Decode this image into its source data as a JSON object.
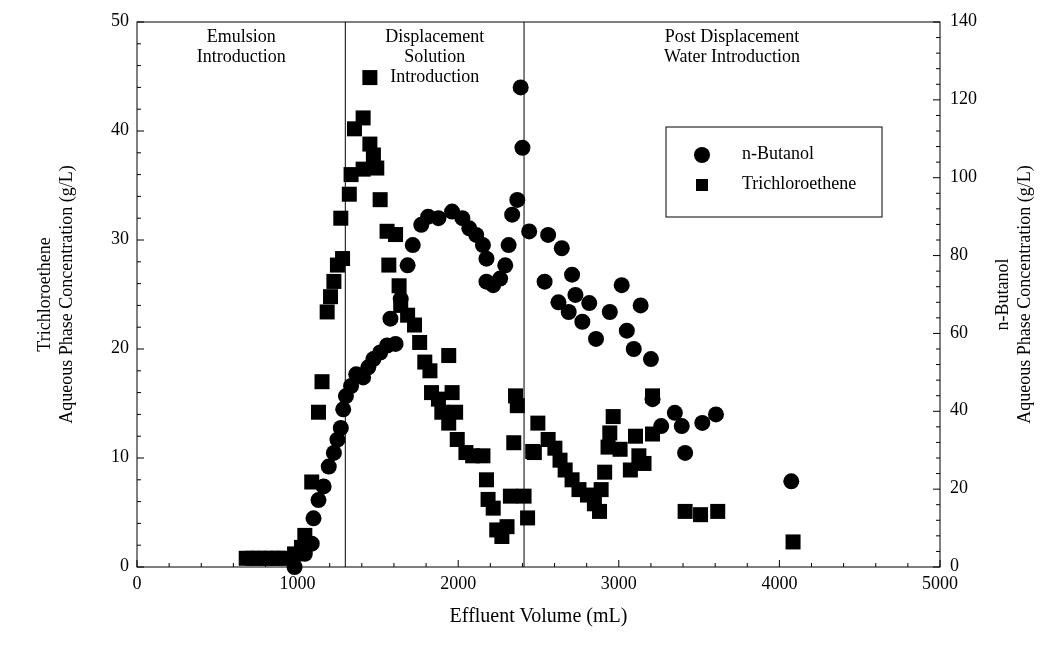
{
  "chart_data": {
    "type": "scatter",
    "xlabel": "Effluent Volume (mL)",
    "ylabel": "Trichloroethene\nAqueous Phase Concentration (g/L)",
    "y2label": "n-Butanol\nAqueous Phase Concentration (g/L)",
    "annotations": [
      "Emulsion\nIntroduction",
      "Displacement\nSolution\nIntroduction",
      "Post Displacement\nWater Introduction"
    ],
    "xlim": [
      0,
      5000
    ],
    "xticks": [
      0,
      {
        "value": 200,
        "label": null
      },
      {
        "value": 400,
        "label": null
      },
      {
        "value": 600,
        "label": null
      },
      {
        "value": 800,
        "label": null
      },
      1000,
      {
        "value": 1200,
        "label": null
      },
      {
        "value": 1400,
        "label": null
      },
      {
        "value": 1600,
        "label": null
      },
      {
        "value": 1800,
        "label": null
      },
      2000,
      {
        "value": 2200,
        "label": null
      },
      {
        "value": 2400,
        "label": null
      },
      {
        "value": 2600,
        "label": null
      },
      {
        "value": 2800,
        "label": null
      },
      3000,
      {
        "value": 3200,
        "label": null
      },
      {
        "value": 3400,
        "label": null
      },
      {
        "value": 3600,
        "label": null
      },
      {
        "value": 3800,
        "label": null
      },
      4000,
      {
        "value": 4200,
        "label": null
      },
      {
        "value": 4400,
        "label": null
      },
      {
        "value": 4600,
        "label": null
      },
      {
        "value": 4800,
        "label": null
      },
      5000
    ],
    "ylim": [
      0,
      50
    ],
    "yticks": [
      0,
      {
        "value": 2,
        "label": null
      },
      {
        "value": 4,
        "label": null
      },
      {
        "value": 6,
        "label": null
      },
      {
        "value": 8,
        "label": null
      },
      10,
      {
        "value": 12,
        "label": null
      },
      {
        "value": 14,
        "label": null
      },
      {
        "value": 16,
        "label": null
      },
      {
        "value": 18,
        "label": null
      },
      20,
      {
        "value": 22,
        "label": null
      },
      {
        "value": 24,
        "label": null
      },
      {
        "value": 26,
        "label": null
      },
      {
        "value": 28,
        "label": null
      },
      30,
      {
        "value": 32,
        "label": null
      },
      {
        "value": 34,
        "label": null
      },
      {
        "value": 36,
        "label": null
      },
      {
        "value": 38,
        "label": null
      },
      40,
      {
        "value": 42,
        "label": null
      },
      {
        "value": 44,
        "label": null
      },
      {
        "value": 46,
        "label": null
      },
      {
        "value": 48,
        "label": null
      },
      50
    ],
    "y2lim": [
      0,
      140
    ],
    "y2ticks": [
      0,
      {
        "value": 4,
        "label": null
      },
      {
        "value": 8,
        "label": null
      },
      {
        "value": 12,
        "label": null
      },
      {
        "value": 16,
        "label": null
      },
      20,
      {
        "value": 24,
        "label": null
      },
      {
        "value": 28,
        "label": null
      },
      {
        "value": 32,
        "label": null
      },
      {
        "value": 36,
        "label": null
      },
      40,
      {
        "value": 44,
        "label": null
      },
      {
        "value": 48,
        "label": null
      },
      {
        "value": 52,
        "label": null
      },
      {
        "value": 56,
        "label": null
      },
      60,
      {
        "value": 64,
        "label": null
      },
      {
        "value": 68,
        "label": null
      },
      {
        "value": 72,
        "label": null
      },
      {
        "value": 76,
        "label": null
      },
      80,
      {
        "value": 84,
        "label": null
      },
      {
        "value": 88,
        "label": null
      },
      {
        "value": 92,
        "label": null
      },
      {
        "value": 96,
        "label": null
      },
      100,
      {
        "value": 104,
        "label": null
      },
      {
        "value": 108,
        "label": null
      },
      {
        "value": 112,
        "label": null
      },
      {
        "value": 116,
        "label": null
      },
      120,
      {
        "value": 124,
        "label": null
      },
      {
        "value": 128,
        "label": null
      },
      {
        "value": 132,
        "label": null
      },
      {
        "value": 136,
        "label": null
      },
      140
    ],
    "ref_lines": [
      {
        "axis": "x",
        "value": 1297,
        "color": "#000000"
      },
      {
        "axis": "x",
        "value": 2410,
        "color": "#000000"
      }
    ],
    "grid": false,
    "legend": "top right",
    "series": [
      {
        "name": "n-Butanol",
        "color": "#000000",
        "marker": "circle",
        "axis": "y2",
        "x": [
          981,
          1045,
          1088,
          1099,
          1130,
          1162,
          1194,
          1226,
          1248,
          1269,
          1284,
          1301,
          1333,
          1365,
          1408,
          1440,
          1472,
          1514,
          1557,
          1578,
          1610,
          1642,
          1685,
          1717,
          1770,
          1813,
          1877,
          1962,
          2026,
          2069,
          2112,
          2154,
          2176,
          2176,
          2218,
          2261,
          2293,
          2314,
          2336,
          2368,
          2389,
          2400,
          2442,
          2538,
          2560,
          2645,
          2709,
          2730,
          2816,
          3018,
          3136,
          2624,
          2688,
          2773,
          2858,
          2944,
          3050,
          3093,
          3200,
          3210,
          3264,
          3349,
          3392,
          3413,
          3520,
          3605,
          4074
        ],
        "values": [
          0,
          3.4,
          6,
          12.5,
          17.2,
          20.7,
          25.8,
          29.3,
          32.7,
          35.7,
          40.5,
          43.9,
          46.5,
          49.5,
          48.7,
          51.3,
          53.4,
          55.1,
          56.9,
          63.8,
          57.3,
          68.9,
          77.5,
          82.7,
          87.9,
          90,
          89.6,
          91.3,
          89.6,
          87,
          85.3,
          82.7,
          79.2,
          73.3,
          72.4,
          74.1,
          77.5,
          82.7,
          90.5,
          94.3,
          123.2,
          107.7,
          86.2,
          73.3,
          85.3,
          81.9,
          75.1,
          69.9,
          67.8,
          72.4,
          67.2,
          68,
          65.5,
          63,
          58.6,
          65.5,
          60.7,
          56,
          53.4,
          43.1,
          36.2,
          39.6,
          36.2,
          29.3,
          37,
          39.2,
          22
        ]
      },
      {
        "name": "Trichloroethene",
        "color": "#000000",
        "marker": "square",
        "x": [
          680,
          720,
          760,
          800,
          840,
          880,
          920,
          981,
          1024,
          1045,
          1088,
          1130,
          1152,
          1184,
          1205,
          1226,
          1248,
          1280,
          1269,
          1322,
          1333,
          1408,
          1354,
          1408,
          1450,
          1472,
          1493,
          1450,
          1514,
          1557,
          1610,
          1568,
          1632,
          1642,
          1685,
          1728,
          1760,
          1792,
          1824,
          1941,
          1834,
          1877,
          1962,
          1898,
          1984,
          1941,
          1994,
          2048,
          2090,
          2154,
          2176,
          2186,
          2218,
          2240,
          2272,
          2304,
          2325,
          2410,
          2346,
          2357,
          2368,
          2432,
          2464,
          2474,
          2496,
          2560,
          2602,
          2634,
          2666,
          2709,
          2752,
          2805,
          2848,
          2880,
          2890,
          2912,
          2933,
          2965,
          2944,
          3008,
          3072,
          3104,
          3125,
          3157,
          3210,
          3210,
          3413,
          3509,
          3616,
          4085
        ],
        "values": [
          0.8,
          0.8,
          0.8,
          0.8,
          0.8,
          0.8,
          0.8,
          1.2,
          1.8,
          2.9,
          7.8,
          14.2,
          17,
          23.4,
          24.8,
          26.2,
          27.7,
          28.3,
          32,
          34.2,
          36,
          36.5,
          40.2,
          41.2,
          38.8,
          37.8,
          36.6,
          44.9,
          33.7,
          30.8,
          30.5,
          27.7,
          25.8,
          24,
          23.1,
          22.2,
          20.6,
          18.8,
          18,
          19.4,
          16,
          15.4,
          16,
          14.2,
          14.2,
          13.2,
          11.7,
          10.5,
          10.2,
          10.2,
          8,
          6.2,
          5.4,
          3.4,
          2.8,
          3.7,
          6.5,
          6.5,
          11.4,
          15.7,
          14.8,
          4.5,
          10.6,
          10.5,
          13.2,
          11.7,
          10.9,
          9.8,
          8.9,
          8,
          7.1,
          6.6,
          5.8,
          5.1,
          7.1,
          8.7,
          11,
          13.8,
          12.3,
          10.8,
          8.9,
          12,
          10.2,
          9.5,
          15.7,
          12.2,
          5.1,
          4.8,
          5.1,
          2.3
        ]
      }
    ]
  }
}
